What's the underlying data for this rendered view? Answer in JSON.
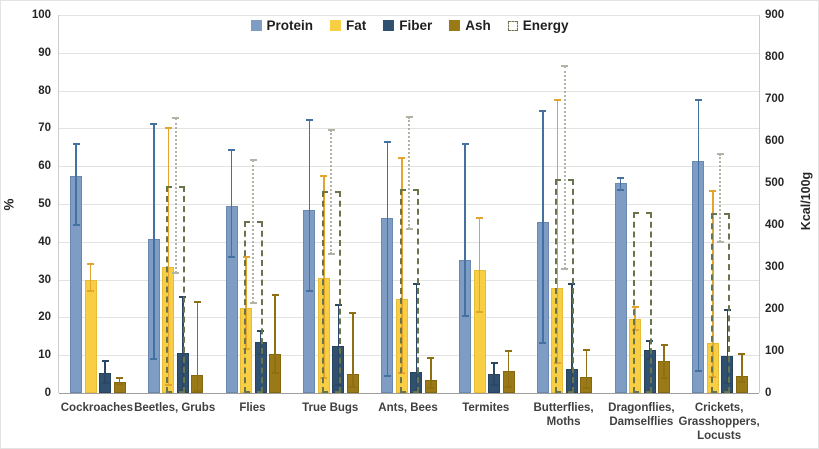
{
  "chart_data": {
    "type": "bar",
    "title": "",
    "grid": true,
    "legend_position": "top-center",
    "left_axis": {
      "label": "%",
      "min": 0,
      "max": 100,
      "tick_step": 10
    },
    "right_axis": {
      "label": "Kcal/100g",
      "min": 0,
      "max": 900,
      "tick_step": 100
    },
    "categories": [
      "Cockroaches",
      "Beetles, Grubs",
      "Flies",
      "True Bugs",
      "Ants, Bees",
      "Termites",
      "Butterflies, Moths",
      "Dragonflies, Damselflies",
      "Crickets, Grasshoppers, Locusts"
    ],
    "category_label_lines": [
      [
        "Cockroaches"
      ],
      [
        "Beetles, Grubs"
      ],
      [
        "Flies"
      ],
      [
        "True Bugs"
      ],
      [
        "Ants, Bees"
      ],
      [
        "Termites"
      ],
      [
        "Butterflies,",
        "Moths"
      ],
      [
        "Dragonflies,",
        "Damselflies"
      ],
      [
        "Crickets,",
        "Grasshoppers,",
        "Locusts"
      ]
    ],
    "series": [
      {
        "name": "Protein",
        "axis": "left",
        "unit": "%",
        "style": "solid",
        "color": "#7e9cc4",
        "edge": "#6a89b0",
        "err_color": "#44719f",
        "values": [
          57.3,
          40.7,
          49.5,
          48.5,
          46.3,
          35.3,
          45.3,
          55.5,
          61.5
        ],
        "errors": [
          [
            44.5,
            65.8
          ],
          [
            9,
            71.2
          ],
          [
            36,
            64.3
          ],
          [
            27,
            72.2
          ],
          [
            4.5,
            66.4
          ],
          [
            20.4,
            65.8
          ],
          [
            13.2,
            74.7
          ],
          [
            53.8,
            56.8
          ],
          [
            5.8,
            77.4
          ]
        ]
      },
      {
        "name": "Fat",
        "axis": "left",
        "unit": "%",
        "style": "solid",
        "color": "#f8ce45",
        "edge": "#e9bc37",
        "err_color": "#e3a52e",
        "values": [
          30,
          33.4,
          22.6,
          30.3,
          24.9,
          32.6,
          27.8,
          19.6,
          13.3
        ],
        "errors": [
          [
            27.1,
            34.1
          ],
          [
            2,
            70.2
          ],
          [
            11.6,
            36.1
          ],
          [
            4,
            57.5
          ],
          [
            5.4,
            62.3
          ],
          [
            21.3,
            46.4
          ],
          [
            8,
            77.6
          ],
          [
            16.6,
            22.8
          ],
          [
            4.3,
            53.4
          ]
        ]
      },
      {
        "name": "Fiber",
        "axis": "left",
        "unit": "%",
        "style": "solid",
        "color": "#30506f",
        "edge": "#27425d",
        "err_color": "#2b4763",
        "values": [
          5.4,
          10.5,
          13.5,
          12.5,
          5.6,
          5.0,
          6.4,
          11.4,
          9.7
        ],
        "errors": [
          [
            2.7,
            8.4
          ],
          [
            0.5,
            25.3
          ],
          [
            10.3,
            16.4
          ],
          [
            2.1,
            23.2
          ],
          [
            0.6,
            28.9
          ],
          [
            2.2,
            7.9
          ],
          [
            0.6,
            28.8
          ],
          [
            8.9,
            13.7
          ],
          [
            2.7,
            22
          ]
        ]
      },
      {
        "name": "Ash",
        "axis": "left",
        "unit": "%",
        "style": "solid",
        "color": "#9a7917",
        "edge": "#856710",
        "err_color": "#8e6f12",
        "values": [
          3.0,
          4.8,
          10.3,
          5.0,
          3.5,
          5.9,
          4.3,
          8.4,
          4.4
        ],
        "errors": [
          [
            2.3,
            4.0
          ],
          [
            0.5,
            24.2
          ],
          [
            5.4,
            26
          ],
          [
            1.5,
            21.1
          ],
          [
            1.2,
            9.3
          ],
          [
            1.6,
            11.1
          ],
          [
            1.4,
            11.5
          ],
          [
            3.9,
            12.6
          ],
          [
            2.9,
            10.2
          ]
        ]
      },
      {
        "name": "Energy",
        "axis": "right",
        "unit": "Kcal/100g",
        "style": "dashed-outline",
        "color": "#68744b",
        "err_color": "#b1b3a4",
        "values": [
          null,
          492,
          410,
          481,
          486,
          null,
          510,
          432,
          428
        ],
        "errors": [
          null,
          [
            285,
            655
          ],
          [
            215,
            554
          ],
          [
            330,
            626
          ],
          [
            390,
            658
          ],
          null,
          [
            295,
            778
          ],
          null,
          [
            360,
            568
          ]
        ]
      }
    ],
    "colors": {
      "gridline": "#e3e3e3",
      "axis_line": "#9e9e9e",
      "plot_border": "#cccccc",
      "tick_text": "#262626",
      "category_text": "#404040",
      "background": "#ffffff"
    }
  }
}
